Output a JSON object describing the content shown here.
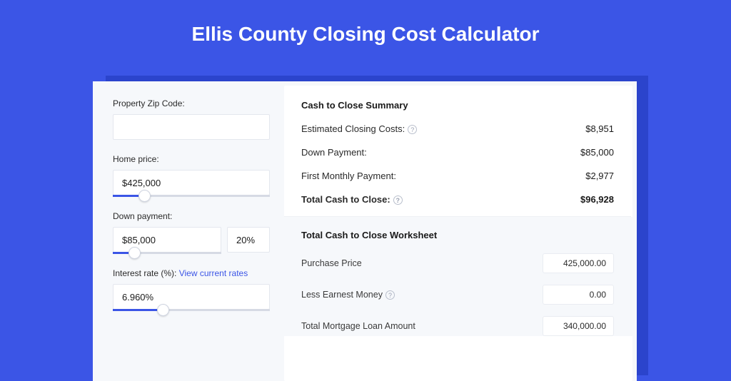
{
  "colors": {
    "page_bg": "#3b55e6",
    "shadow": "#2b44cc",
    "panel_bg": "#f6f8fb",
    "card_bg": "#ffffff",
    "input_border": "#e4e7ee",
    "slider_track": "#d6dae4",
    "slider_fill": "#3b55e6",
    "link": "#3b55e6",
    "text_primary": "#1a1a1a",
    "text_secondary": "#2a2a2a"
  },
  "page": {
    "title": "Ellis County Closing Cost Calculator"
  },
  "inputs": {
    "zip": {
      "label": "Property Zip Code:",
      "value": ""
    },
    "home_price": {
      "label": "Home price:",
      "value": "$425,000",
      "slider_pct": 20
    },
    "down_payment": {
      "label": "Down payment:",
      "value": "$85,000",
      "pct": "20%",
      "slider_pct": 20
    },
    "interest": {
      "label": "Interest rate (%):",
      "link_text": "View current rates",
      "value": "6.960%",
      "slider_pct": 32
    }
  },
  "summary": {
    "title": "Cash to Close Summary",
    "rows": [
      {
        "label": "Estimated Closing Costs:",
        "help": true,
        "value": "$8,951",
        "bold": false
      },
      {
        "label": "Down Payment:",
        "help": false,
        "value": "$85,000",
        "bold": false
      },
      {
        "label": "First Monthly Payment:",
        "help": false,
        "value": "$2,977",
        "bold": false
      },
      {
        "label": "Total Cash to Close:",
        "help": true,
        "value": "$96,928",
        "bold": true
      }
    ]
  },
  "worksheet": {
    "title": "Total Cash to Close Worksheet",
    "rows": [
      {
        "label": "Purchase Price",
        "help": false,
        "value": "425,000.00"
      },
      {
        "label": "Less Earnest Money",
        "help": true,
        "value": "0.00"
      },
      {
        "label": "Total Mortgage Loan Amount",
        "help": false,
        "value": "340,000.00"
      }
    ]
  }
}
